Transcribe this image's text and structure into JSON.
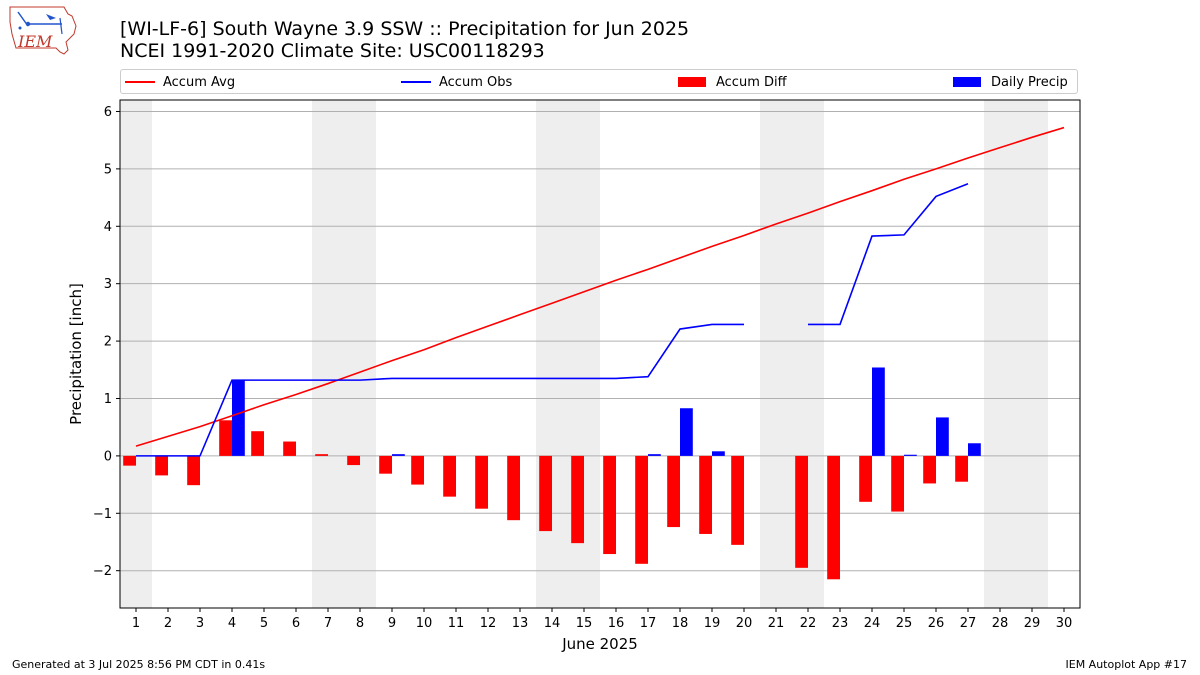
{
  "header": {
    "title_line1": "[WI-LF-6] South Wayne 3.9 SSW :: Precipitation for Jun 2025",
    "title_line2": "NCEI 1991-2020 Climate Site: USC00118293",
    "logo_text": "IEM"
  },
  "footer": {
    "generated": "Generated at 3 Jul 2025 8:56 PM CDT in 0.41s",
    "app": "IEM Autoplot App #17"
  },
  "colors": {
    "avg": "#ff0000",
    "obs": "#0000ff",
    "diff": "#ff0000",
    "daily": "#0000ff",
    "weekend_band": "#eeeeee",
    "grid": "#b0b0b0"
  },
  "chart_data": {
    "type": "bar",
    "title": "[WI-LF-6] South Wayne 3.9 SSW :: Precipitation for Jun 2025",
    "xlabel": "June 2025",
    "ylabel": "Precipitation [inch]",
    "xlim": [
      0.5,
      30.5
    ],
    "ylim": [
      -2.65,
      6.2
    ],
    "yticks": [
      -2,
      -1,
      0,
      1,
      2,
      3,
      4,
      5,
      6
    ],
    "ytick_labels": [
      "−2",
      "−1",
      "0",
      "1",
      "2",
      "3",
      "4",
      "5",
      "6"
    ],
    "grid": true,
    "legend_position": "top",
    "days": [
      1,
      2,
      3,
      4,
      5,
      6,
      7,
      8,
      9,
      10,
      11,
      12,
      13,
      14,
      15,
      16,
      17,
      18,
      19,
      20,
      21,
      22,
      23,
      24,
      25,
      26,
      27,
      28,
      29,
      30
    ],
    "weekend_bands": [
      [
        0.5,
        1.5
      ],
      [
        6.5,
        8.5
      ],
      [
        13.5,
        15.5
      ],
      [
        20.5,
        22.5
      ],
      [
        27.5,
        29.5
      ]
    ],
    "series": [
      {
        "name": "Accum Avg",
        "kind": "line",
        "values": [
          0.17,
          0.34,
          0.51,
          0.7,
          0.89,
          1.07,
          1.26,
          1.46,
          1.66,
          1.85,
          2.06,
          2.26,
          2.46,
          2.66,
          2.86,
          3.06,
          3.25,
          3.45,
          3.65,
          3.84,
          4.04,
          4.23,
          4.43,
          4.62,
          4.82,
          5.0,
          5.19,
          5.37,
          5.55,
          5.72
        ]
      },
      {
        "name": "Accum Obs",
        "kind": "line",
        "values": [
          0.0,
          0.0,
          0.0,
          1.32,
          1.32,
          1.32,
          1.32,
          1.32,
          1.35,
          1.35,
          1.35,
          1.35,
          1.35,
          1.35,
          1.35,
          1.35,
          1.38,
          2.21,
          2.29,
          2.29,
          null,
          2.29,
          2.29,
          3.83,
          3.85,
          4.52,
          4.74,
          null,
          null,
          null
        ]
      },
      {
        "name": "Accum Diff",
        "kind": "bar",
        "values": [
          -0.17,
          -0.34,
          -0.51,
          0.62,
          0.43,
          0.25,
          0.03,
          -0.16,
          -0.31,
          -0.5,
          -0.71,
          -0.92,
          -1.12,
          -1.31,
          -1.52,
          -1.71,
          -1.88,
          -1.24,
          -1.36,
          -1.55,
          null,
          -1.95,
          -2.15,
          -0.8,
          -0.97,
          -0.48,
          -0.45,
          null,
          null,
          null
        ]
      },
      {
        "name": "Daily Precip",
        "kind": "bar",
        "values": [
          0.0,
          0.0,
          0.0,
          1.32,
          0.0,
          0.0,
          0.0,
          0.0,
          0.03,
          0.0,
          0.0,
          0.0,
          0.0,
          0.0,
          0.0,
          0.0,
          0.03,
          0.83,
          0.08,
          0.0,
          null,
          0.0,
          0.0,
          1.54,
          0.02,
          0.67,
          0.22,
          null,
          null,
          null
        ]
      }
    ]
  }
}
